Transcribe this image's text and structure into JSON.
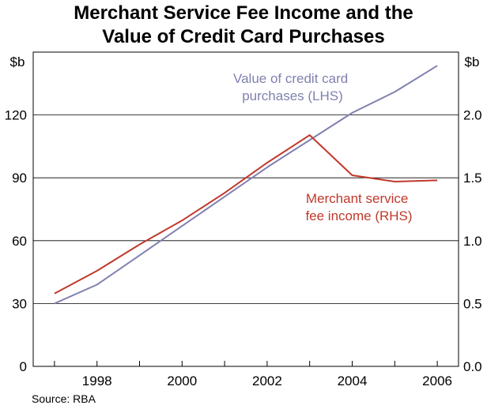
{
  "chart_data": {
    "type": "line",
    "title_line1": "Merchant Service Fee Income and the",
    "title_line2": "Value of Credit Card Purchases",
    "left_axis": {
      "unit": "$b",
      "min": 0,
      "max": 150,
      "ticks": [
        0,
        30,
        60,
        90,
        120
      ]
    },
    "right_axis": {
      "unit": "$b",
      "min": 0.0,
      "max": 2.5,
      "ticks": [
        "0.0",
        "0.5",
        "1.0",
        "1.5",
        "2.0"
      ]
    },
    "x_axis": {
      "min": 1996.5,
      "max": 2006.5,
      "ticks": [
        1998,
        2000,
        2002,
        2004,
        2006
      ]
    },
    "series": [
      {
        "name": "Value of credit card purchases (LHS)",
        "label_line1": "Value of credit card",
        "label_line2": "purchases (LHS)",
        "axis": "left",
        "color": "#8080b0",
        "x": [
          1997,
          1998,
          1999,
          2000,
          2001,
          2002,
          2003,
          2004,
          2005,
          2006
        ],
        "values": [
          30,
          39,
          53,
          67,
          81,
          95,
          108,
          121,
          131,
          143.5
        ]
      },
      {
        "name": "Merchant service fee income (RHS)",
        "label_line1": "Merchant service",
        "label_line2": "fee income (RHS)",
        "axis": "right",
        "color": "#c0392b",
        "x": [
          1997,
          1998,
          1999,
          2000,
          2001,
          2002,
          2003,
          2004,
          2005,
          2006
        ],
        "values": [
          0.58,
          0.76,
          0.97,
          1.16,
          1.38,
          1.62,
          1.84,
          1.52,
          1.47,
          1.48
        ]
      }
    ],
    "source": "Source: RBA"
  }
}
